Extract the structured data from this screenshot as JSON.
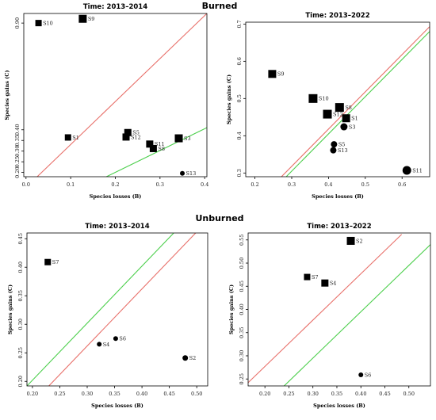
{
  "figure": {
    "group_labels": [
      "Burned",
      "Unburned"
    ]
  },
  "chart_data": [
    {
      "type": "scatter",
      "group": "Burned",
      "title": "Time: 2013–2014",
      "xlabel": "Species losses (B)",
      "ylabel": "Species gains (C)",
      "xlim": [
        -0.005,
        0.405
      ],
      "ylim": [
        0.18,
        0.945
      ],
      "xticks": [
        0.0,
        0.1,
        0.2,
        0.3,
        0.4
      ],
      "xtick_labels": [
        "0.0",
        "0.1",
        "0.2",
        "0.3",
        "0.4"
      ],
      "yticks": [
        0.2,
        0.25,
        0.3,
        0.35,
        0.4,
        0.9
      ],
      "ytick_labels": [
        "0.20",
        "0.25",
        "0.30",
        "0.35",
        "0.40",
        "0.90"
      ],
      "reference_lines": [
        {
          "color": "#e8706a",
          "points": [
            [
              0.025,
              0.18
            ],
            [
              0.405,
              0.945
            ]
          ]
        },
        {
          "color": "#4ccf4c",
          "points": [
            [
              0.18,
              0.18
            ],
            [
              0.405,
              0.41
            ]
          ]
        }
      ],
      "points": [
        {
          "label": "S10",
          "x": 0.028,
          "y": 0.9,
          "marker": "square",
          "size": 4
        },
        {
          "label": "S9",
          "x": 0.127,
          "y": 0.92,
          "marker": "square",
          "size": 5
        },
        {
          "label": "S1",
          "x": 0.094,
          "y": 0.364,
          "marker": "square",
          "size": 4
        },
        {
          "label": "S5",
          "x": 0.228,
          "y": 0.387,
          "marker": "square",
          "size": 4.5
        },
        {
          "label": "S12",
          "x": 0.224,
          "y": 0.366,
          "marker": "square",
          "size": 4.5
        },
        {
          "label": "S3",
          "x": 0.342,
          "y": 0.36,
          "marker": "square",
          "size": 5
        },
        {
          "label": "S11",
          "x": 0.277,
          "y": 0.333,
          "marker": "square",
          "size": 4.5
        },
        {
          "label": "S8",
          "x": 0.285,
          "y": 0.312,
          "marker": "square",
          "size": 4.5
        },
        {
          "label": "S13",
          "x": 0.35,
          "y": 0.196,
          "marker": "circle",
          "size": 3
        }
      ]
    },
    {
      "type": "scatter",
      "group": "Burned",
      "title": "Time: 2013–2022",
      "xlabel": "Species losses (B)",
      "ylabel": "Species gains (C)",
      "xlim": [
        0.175,
        0.675
      ],
      "ylim": [
        0.29,
        0.705
      ],
      "xticks": [
        0.2,
        0.3,
        0.4,
        0.5,
        0.6
      ],
      "xtick_labels": [
        "0.2",
        "0.3",
        "0.4",
        "0.5",
        "0.6"
      ],
      "yticks": [
        0.3,
        0.4,
        0.5,
        0.6,
        0.7
      ],
      "ytick_labels": [
        "0.3",
        "0.4",
        "0.5",
        "0.6",
        "0.7"
      ],
      "reference_lines": [
        {
          "color": "#e8706a",
          "points": [
            [
              0.272,
              0.29
            ],
            [
              0.675,
              0.693
            ]
          ]
        },
        {
          "color": "#4ccf4c",
          "points": [
            [
              0.285,
              0.29
            ],
            [
              0.675,
              0.68
            ]
          ]
        }
      ],
      "points": [
        {
          "label": "S9",
          "x": 0.247,
          "y": 0.566,
          "marker": "square",
          "size": 5
        },
        {
          "label": "S10",
          "x": 0.358,
          "y": 0.5,
          "marker": "square",
          "size": 5.5
        },
        {
          "label": "S8",
          "x": 0.43,
          "y": 0.476,
          "marker": "square",
          "size": 5.5
        },
        {
          "label": "S12",
          "x": 0.397,
          "y": 0.458,
          "marker": "square",
          "size": 5.5
        },
        {
          "label": "S1",
          "x": 0.448,
          "y": 0.447,
          "marker": "square",
          "size": 5
        },
        {
          "label": "S3",
          "x": 0.442,
          "y": 0.424,
          "marker": "circle",
          "size": 4.5
        },
        {
          "label": "S5",
          "x": 0.415,
          "y": 0.377,
          "marker": "circle",
          "size": 4
        },
        {
          "label": "S13",
          "x": 0.413,
          "y": 0.361,
          "marker": "circle",
          "size": 4
        },
        {
          "label": "S11",
          "x": 0.613,
          "y": 0.307,
          "marker": "circle",
          "size": 5.5
        }
      ]
    },
    {
      "type": "scatter",
      "group": "Unburned",
      "title": "Time: 2013–2014",
      "xlabel": "Species losses (B)",
      "ylabel": "Species gains (C)",
      "xlim": [
        0.19,
        0.52
      ],
      "ylim": [
        0.192,
        0.46
      ],
      "xticks": [
        0.2,
        0.25,
        0.3,
        0.35,
        0.4,
        0.45,
        0.5
      ],
      "xtick_labels": [
        "0.20",
        "0.25",
        "0.30",
        "0.35",
        "0.40",
        "0.45",
        "0.50"
      ],
      "yticks": [
        0.2,
        0.25,
        0.3,
        0.35,
        0.4,
        0.45
      ],
      "ytick_labels": [
        "0.20",
        "0.25",
        "0.30",
        "0.35",
        "0.40",
        "0.45"
      ],
      "reference_lines": [
        {
          "color": "#4ccf4c",
          "points": [
            [
              0.19,
              0.192
            ],
            [
              0.458,
              0.46
            ]
          ]
        },
        {
          "color": "#e8706a",
          "points": [
            [
              0.23,
              0.192
            ],
            [
              0.498,
              0.46
            ]
          ]
        }
      ],
      "points": [
        {
          "label": "S7",
          "x": 0.228,
          "y": 0.409,
          "marker": "square",
          "size": 4
        },
        {
          "label": "S4",
          "x": 0.322,
          "y": 0.265,
          "marker": "circle",
          "size": 3
        },
        {
          "label": "S6",
          "x": 0.352,
          "y": 0.275,
          "marker": "circle",
          "size": 3
        },
        {
          "label": "S2",
          "x": 0.479,
          "y": 0.241,
          "marker": "circle",
          "size": 3.5
        }
      ]
    },
    {
      "type": "scatter",
      "group": "Unburned",
      "title": "Time: 2013–2022",
      "xlabel": "Species losses (B)",
      "ylabel": "Species gains (C)",
      "xlim": [
        0.165,
        0.545
      ],
      "ylim": [
        0.235,
        0.565
      ],
      "xticks": [
        0.2,
        0.25,
        0.3,
        0.35,
        0.4,
        0.45,
        0.5
      ],
      "xtick_labels": [
        "0.20",
        "0.25",
        "0.30",
        "0.35",
        "0.40",
        "0.45",
        "0.50"
      ],
      "yticks": [
        0.25,
        0.3,
        0.35,
        0.4,
        0.45,
        0.5,
        0.55
      ],
      "ytick_labels": [
        "0.25",
        "0.30",
        "0.35",
        "0.40",
        "0.45",
        "0.50",
        "0.55"
      ],
      "reference_lines": [
        {
          "color": "#e8706a",
          "points": [
            [
              0.165,
              0.242
            ],
            [
              0.485,
              0.562
            ]
          ]
        },
        {
          "color": "#4ccf4c",
          "points": [
            [
              0.24,
              0.235
            ],
            [
              0.545,
              0.54
            ]
          ]
        }
      ],
      "points": [
        {
          "label": "S2",
          "x": 0.379,
          "y": 0.548,
          "marker": "square",
          "size": 5
        },
        {
          "label": "S7",
          "x": 0.288,
          "y": 0.47,
          "marker": "square",
          "size": 4
        },
        {
          "label": "S4",
          "x": 0.325,
          "y": 0.457,
          "marker": "square",
          "size": 4.5
        },
        {
          "label": "S6",
          "x": 0.4,
          "y": 0.259,
          "marker": "circle",
          "size": 3
        }
      ]
    }
  ]
}
